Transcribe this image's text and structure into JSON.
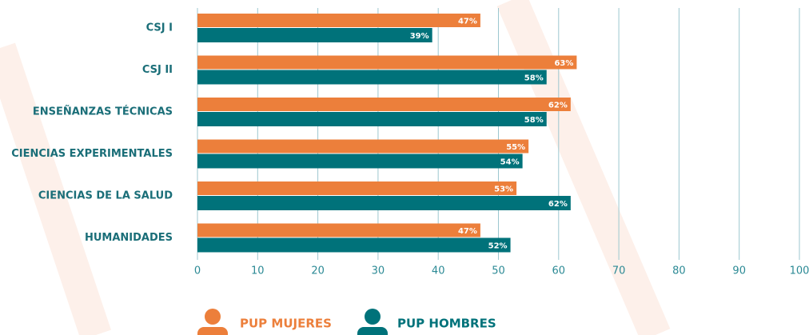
{
  "chart_data": {
    "type": "bar",
    "orientation": "horizontal",
    "categories": [
      "CSJ I",
      "CSJ II",
      "ENSEÑANZAS TÉCNICAS",
      "CIENCIAS EXPERIMENTALES",
      "CIENCIAS DE LA SALUD",
      "HUMANIDADES"
    ],
    "series": [
      {
        "name": "PUP MUJERES",
        "color": "#ec7f3b",
        "values": [
          47,
          63,
          62,
          55,
          53,
          47
        ],
        "value_labels": [
          "47%",
          "63%",
          "62%",
          "55%",
          "53%",
          "47%"
        ]
      },
      {
        "name": "PUP HOMBRES",
        "color": "#00727a",
        "values": [
          39,
          58,
          58,
          54,
          62,
          52
        ],
        "value_labels": [
          "39%",
          "58%",
          "58%",
          "54%",
          "62%",
          "52%"
        ]
      }
    ],
    "xlim": [
      0,
      100
    ],
    "xticks": [
      0,
      10,
      20,
      30,
      40,
      50,
      60,
      70,
      80,
      90,
      100
    ],
    "grid": true
  }
}
